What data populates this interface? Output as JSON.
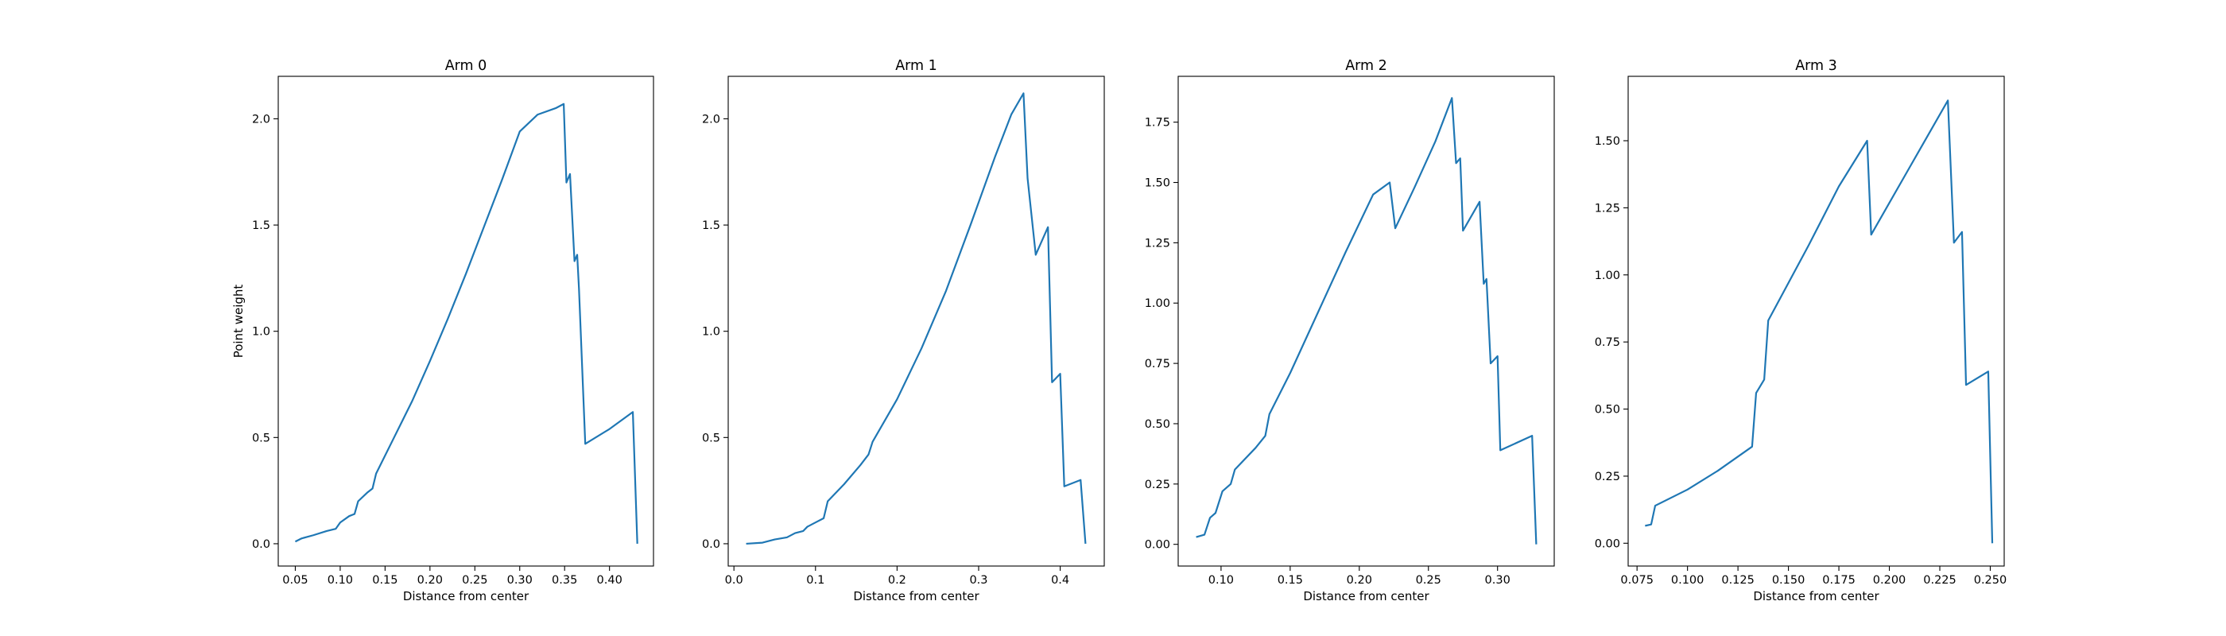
{
  "figure": {
    "line_color": "#1f77b4",
    "ylabel": "Point weight",
    "xlabel": "Distance from center"
  },
  "chart_data": [
    {
      "type": "line",
      "title": "Arm 0",
      "xlabel": "Distance from center",
      "ylabel": "Point weight",
      "xlim": [
        0.031,
        0.449
      ],
      "ylim": [
        -0.105,
        2.2
      ],
      "xticks": [
        0.05,
        0.1,
        0.15,
        0.2,
        0.25,
        0.3,
        0.35,
        0.4
      ],
      "xtick_labels": [
        "0.05",
        "0.10",
        "0.15",
        "0.20",
        "0.25",
        "0.30",
        "0.35",
        "0.40"
      ],
      "yticks": [
        0.0,
        0.5,
        1.0,
        1.5,
        2.0
      ],
      "ytick_labels": [
        "0.0",
        "0.5",
        "1.0",
        "1.5",
        "2.0"
      ],
      "grid": false,
      "series": [
        {
          "x": [
            0.05,
            0.057,
            0.07,
            0.085,
            0.095,
            0.1,
            0.11,
            0.116,
            0.12,
            0.13,
            0.136,
            0.14,
            0.16,
            0.18,
            0.2,
            0.22,
            0.24,
            0.26,
            0.28,
            0.3,
            0.32,
            0.34,
            0.349,
            0.352,
            0.356,
            0.361,
            0.364,
            0.366,
            0.373,
            0.4,
            0.426,
            0.431
          ],
          "y": [
            0.01,
            0.025,
            0.04,
            0.06,
            0.07,
            0.1,
            0.13,
            0.14,
            0.2,
            0.24,
            0.26,
            0.33,
            0.5,
            0.67,
            0.86,
            1.06,
            1.27,
            1.49,
            1.71,
            1.94,
            2.02,
            2.05,
            2.07,
            1.7,
            1.74,
            1.33,
            1.36,
            1.2,
            0.47,
            0.54,
            0.62,
            0.0
          ]
        }
      ]
    },
    {
      "type": "line",
      "title": "Arm 1",
      "xlabel": "Distance from center",
      "ylabel": "",
      "xlim": [
        -0.007,
        0.454
      ],
      "ylim": [
        -0.105,
        2.2
      ],
      "xticks": [
        0.0,
        0.1,
        0.2,
        0.3,
        0.4
      ],
      "xtick_labels": [
        "0.0",
        "0.1",
        "0.2",
        "0.3",
        "0.4"
      ],
      "yticks": [
        0.0,
        0.5,
        1.0,
        1.5,
        2.0
      ],
      "ytick_labels": [
        "0.0",
        "0.5",
        "1.0",
        "1.5",
        "2.0"
      ],
      "grid": false,
      "series": [
        {
          "x": [
            0.015,
            0.035,
            0.05,
            0.065,
            0.075,
            0.085,
            0.09,
            0.1,
            0.11,
            0.115,
            0.135,
            0.155,
            0.165,
            0.17,
            0.2,
            0.23,
            0.26,
            0.29,
            0.32,
            0.34,
            0.355,
            0.36,
            0.37,
            0.385,
            0.39,
            0.4,
            0.405,
            0.425,
            0.431
          ],
          "y": [
            0.0,
            0.005,
            0.02,
            0.03,
            0.05,
            0.06,
            0.08,
            0.1,
            0.12,
            0.2,
            0.28,
            0.37,
            0.42,
            0.48,
            0.68,
            0.92,
            1.19,
            1.5,
            1.82,
            2.02,
            2.12,
            1.72,
            1.36,
            1.49,
            0.76,
            0.8,
            0.27,
            0.3,
            0.0
          ]
        }
      ]
    },
    {
      "type": "line",
      "title": "Arm 2",
      "xlabel": "Distance from center",
      "ylabel": "",
      "xlim": [
        0.069,
        0.341
      ],
      "ylim": [
        -0.09,
        1.94
      ],
      "xticks": [
        0.1,
        0.15,
        0.2,
        0.25,
        0.3
      ],
      "xtick_labels": [
        "0.10",
        "0.15",
        "0.20",
        "0.25",
        "0.30"
      ],
      "yticks": [
        0.0,
        0.25,
        0.5,
        0.75,
        1.0,
        1.25,
        1.5,
        1.75
      ],
      "ytick_labels": [
        "0.00",
        "0.25",
        "0.50",
        "0.75",
        "1.00",
        "1.25",
        "1.50",
        "1.75"
      ],
      "grid": false,
      "series": [
        {
          "x": [
            0.082,
            0.088,
            0.092,
            0.096,
            0.101,
            0.107,
            0.11,
            0.125,
            0.132,
            0.135,
            0.15,
            0.17,
            0.19,
            0.21,
            0.222,
            0.226,
            0.24,
            0.255,
            0.267,
            0.27,
            0.273,
            0.275,
            0.287,
            0.29,
            0.292,
            0.295,
            0.3,
            0.302,
            0.325,
            0.328
          ],
          "y": [
            0.03,
            0.04,
            0.11,
            0.13,
            0.22,
            0.25,
            0.31,
            0.4,
            0.45,
            0.54,
            0.71,
            0.96,
            1.21,
            1.45,
            1.5,
            1.31,
            1.48,
            1.67,
            1.85,
            1.58,
            1.6,
            1.3,
            1.42,
            1.08,
            1.1,
            0.75,
            0.78,
            0.39,
            0.45,
            0.0
          ]
        }
      ]
    },
    {
      "type": "line",
      "title": "Arm 3",
      "xlabel": "Distance from center",
      "ylabel": "",
      "xlim": [
        0.0706,
        0.2569
      ],
      "ylim": [
        -0.085,
        1.74
      ],
      "xticks": [
        0.075,
        0.1,
        0.125,
        0.15,
        0.175,
        0.2,
        0.225,
        0.25
      ],
      "xtick_labels": [
        "0.075",
        "0.100",
        "0.125",
        "0.150",
        "0.175",
        "0.200",
        "0.225",
        "0.250"
      ],
      "yticks": [
        0.0,
        0.25,
        0.5,
        0.75,
        1.0,
        1.25,
        1.5
      ],
      "ytick_labels": [
        "0.00",
        "0.25",
        "0.50",
        "0.75",
        "1.00",
        "1.25",
        "1.50"
      ],
      "grid": false,
      "series": [
        {
          "x": [
            0.079,
            0.082,
            0.084,
            0.1,
            0.115,
            0.132,
            0.134,
            0.138,
            0.14,
            0.16,
            0.175,
            0.189,
            0.191,
            0.21,
            0.229,
            0.232,
            0.236,
            0.238,
            0.249,
            0.251
          ],
          "y": [
            0.065,
            0.07,
            0.14,
            0.2,
            0.27,
            0.36,
            0.56,
            0.61,
            0.83,
            1.11,
            1.33,
            1.5,
            1.15,
            1.4,
            1.65,
            1.12,
            1.16,
            0.59,
            0.64,
            0.0
          ]
        }
      ]
    }
  ]
}
